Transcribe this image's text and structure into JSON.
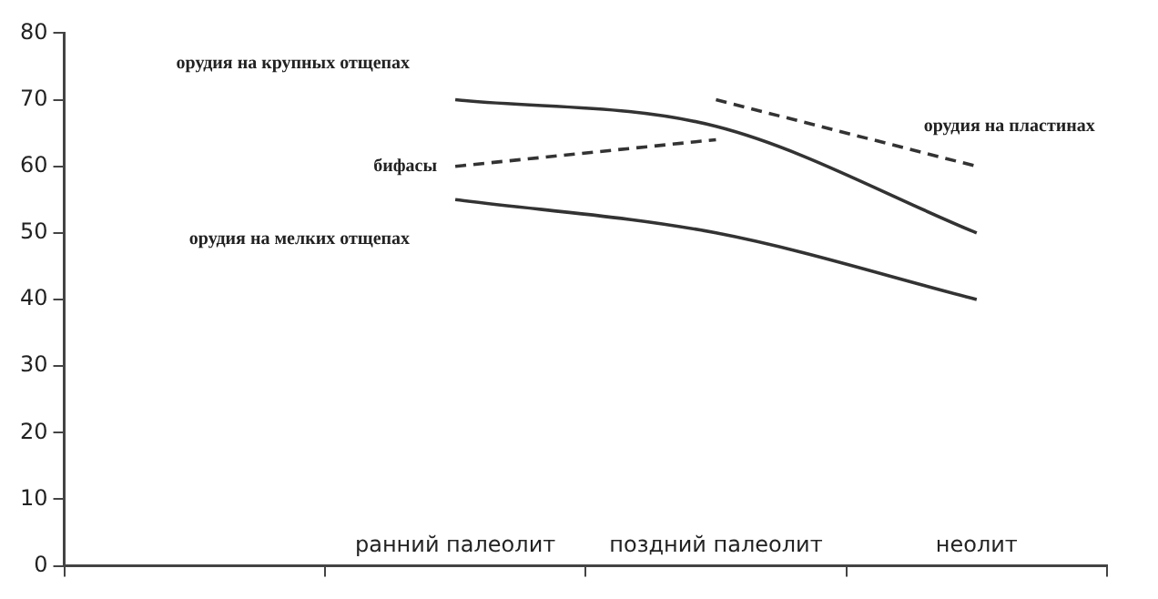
{
  "chart_data": {
    "type": "line",
    "categories": [
      null,
      "ранний палеолит",
      "поздний палеолит",
      "неолит"
    ],
    "series": [
      {
        "name": "орудия на крупных отщепах",
        "color": "#333333",
        "line_style": "solid",
        "values": [
          null,
          70,
          66,
          50
        ]
      },
      {
        "name": "бифасы",
        "color": "#333333",
        "line_style": "dashed",
        "values": [
          null,
          60,
          64,
          null
        ]
      },
      {
        "name": "орудия на мелких отщепах",
        "color": "#333333",
        "line_style": "solid",
        "values": [
          null,
          55,
          50,
          40
        ]
      },
      {
        "name": "орудия на пластинах",
        "color": "#333333",
        "line_style": "dashed",
        "values": [
          null,
          null,
          70,
          60
        ]
      }
    ],
    "ylim": [
      0,
      80
    ],
    "yticks": [
      0,
      10,
      20,
      30,
      40,
      50,
      60,
      70,
      80
    ],
    "grid": false,
    "legend": false,
    "marker": "none"
  }
}
